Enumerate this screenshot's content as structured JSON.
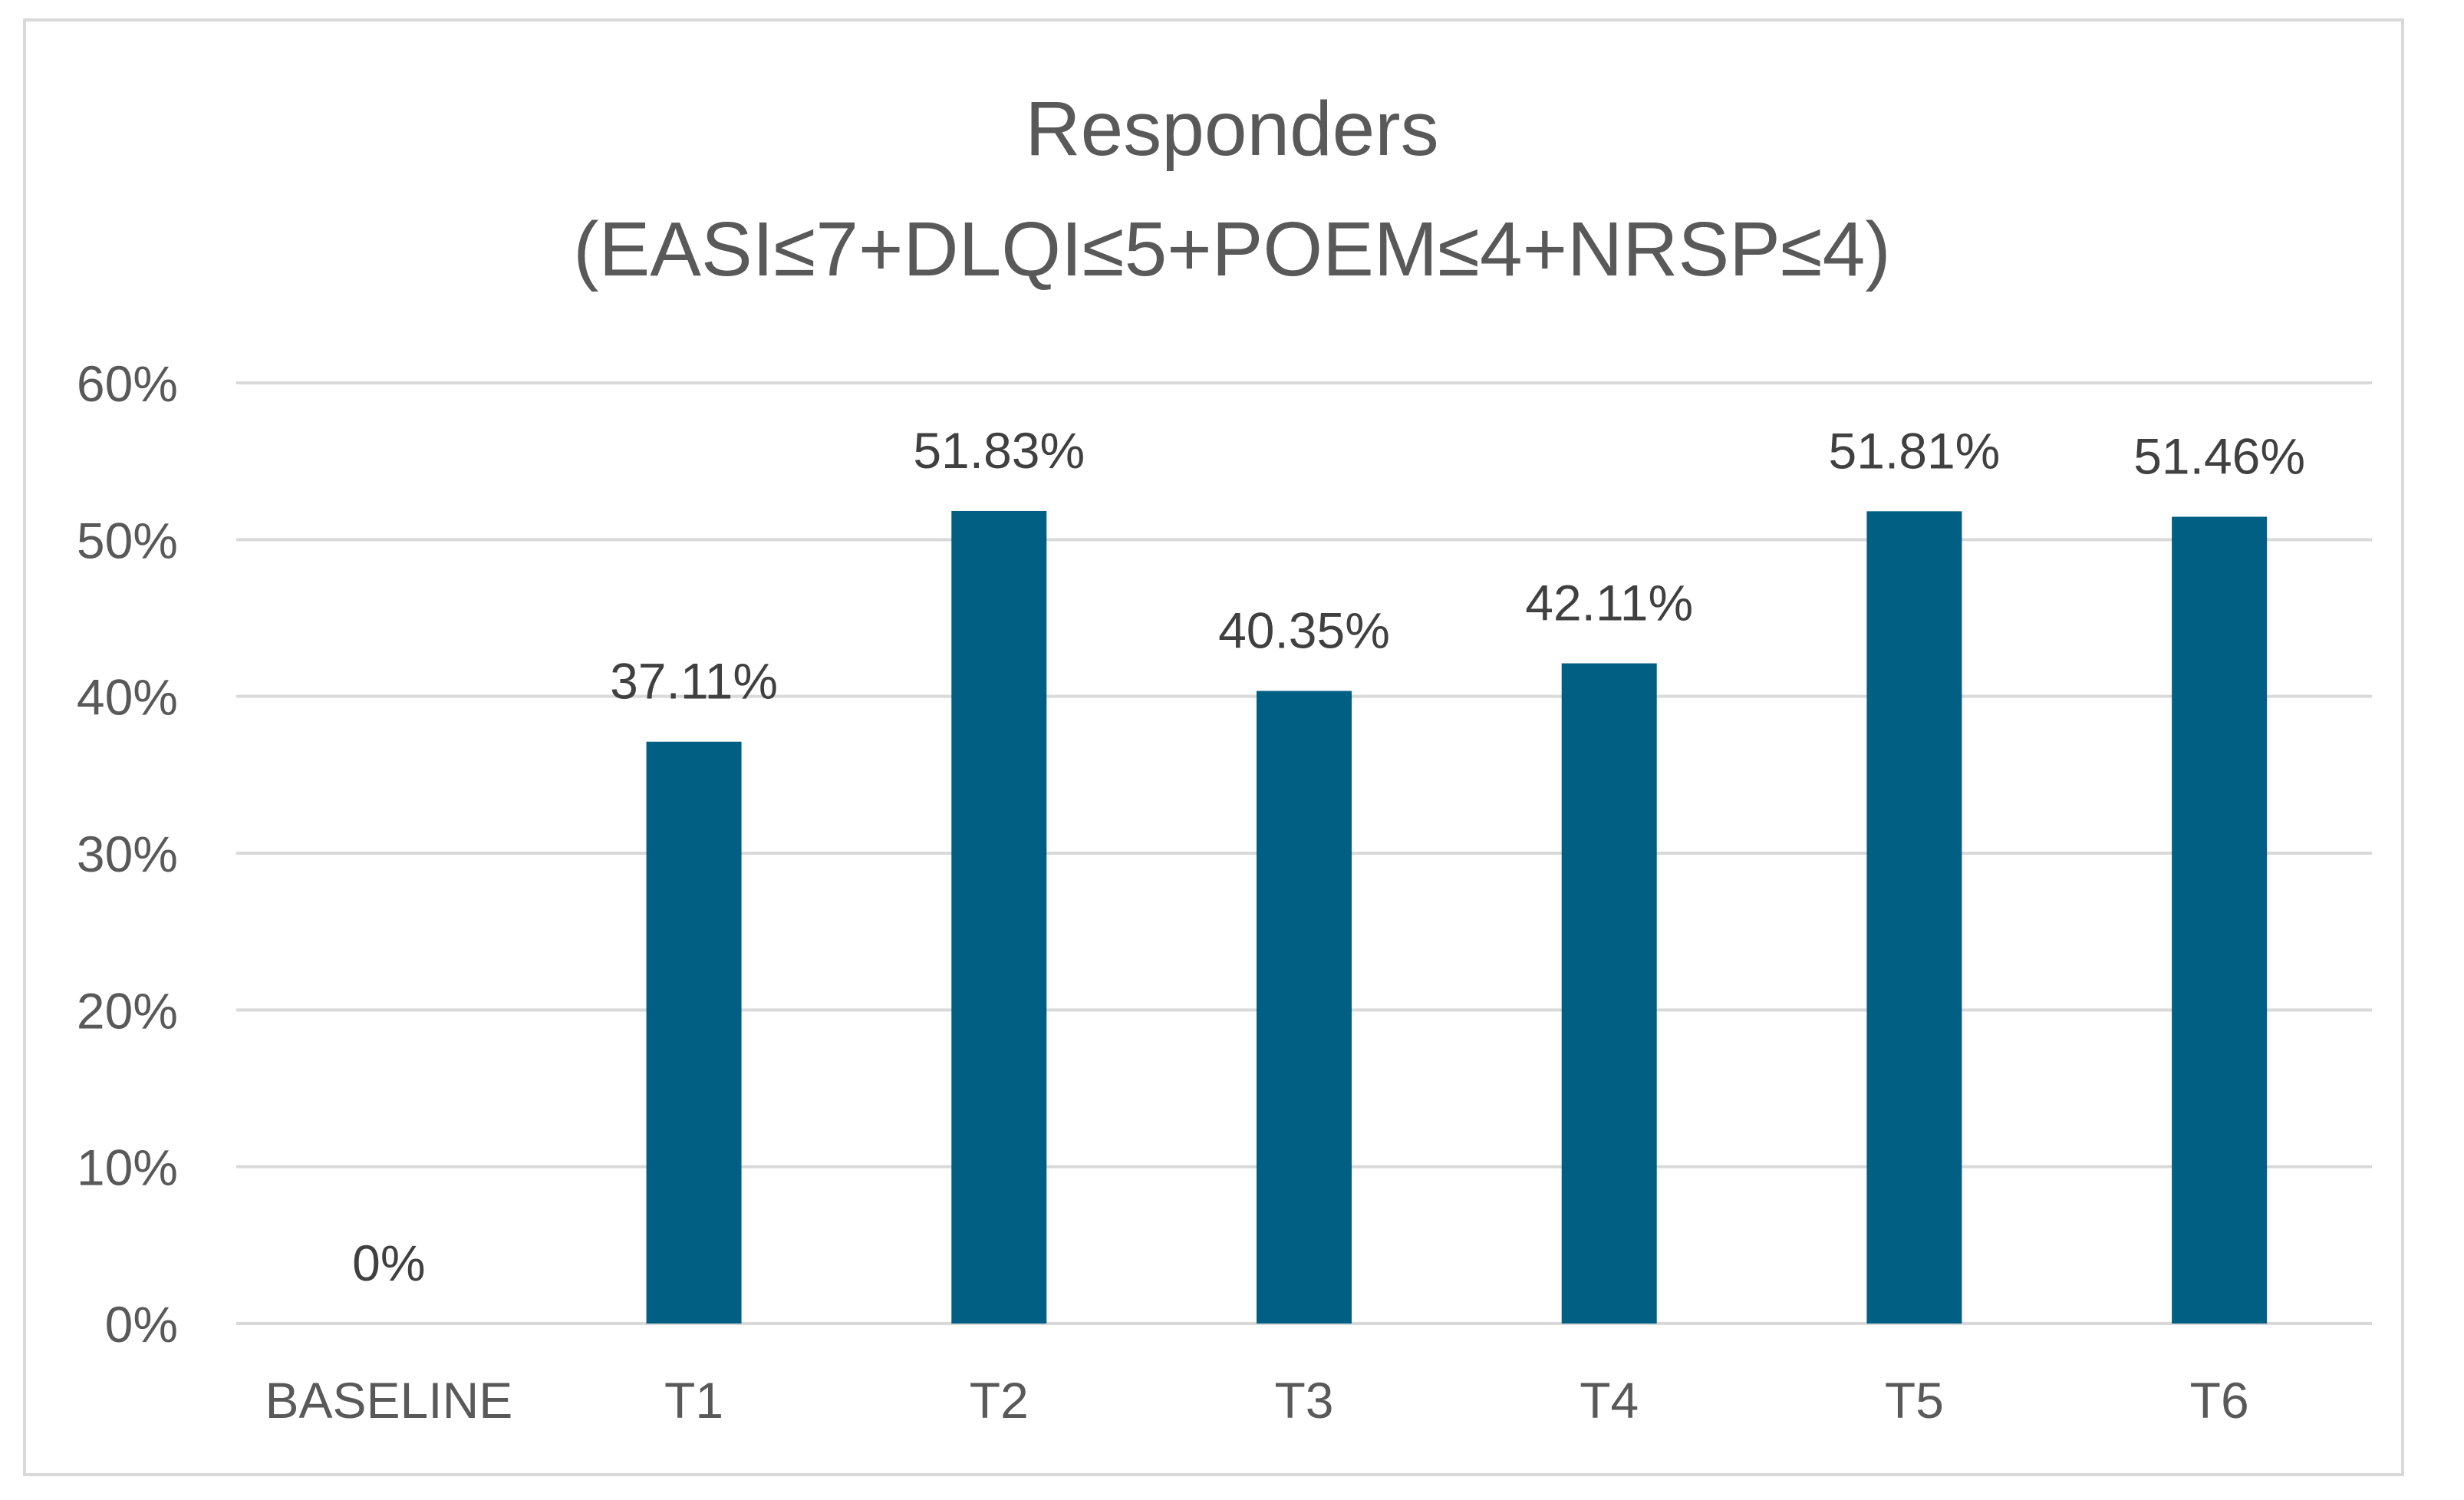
{
  "chart_data": {
    "type": "bar",
    "title": [
      "Responders",
      "(EASI≤7+DLQI≤5+POEM≤4+NRSP≤4)"
    ],
    "categories": [
      "BASELINE",
      "T1",
      "T2",
      "T3",
      "T4",
      "T5",
      "T6"
    ],
    "values": [
      0,
      37.11,
      51.83,
      40.35,
      42.11,
      51.81,
      51.46
    ],
    "data_labels": [
      "0%",
      "37.11%",
      "51.83%",
      "40.35%",
      "42.11%",
      "51.81%",
      "51.46%"
    ],
    "ylim": [
      0,
      60
    ],
    "yticks": [
      0,
      10,
      20,
      30,
      40,
      50,
      60
    ],
    "ytick_labels": [
      "0%",
      "10%",
      "20%",
      "30%",
      "40%",
      "50%",
      "60%"
    ],
    "grid": true,
    "legend": "none",
    "bar_color": "#005f83",
    "grid_color": "#d9d9d9",
    "text_color": "#595959"
  }
}
